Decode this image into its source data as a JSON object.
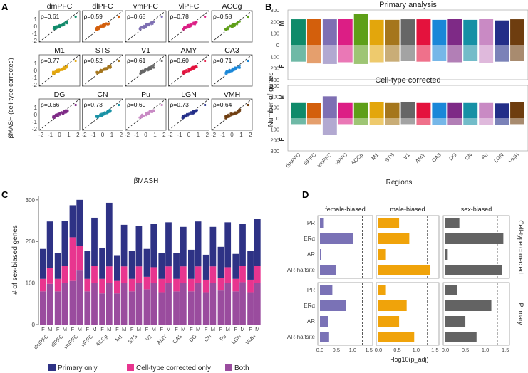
{
  "panel_labels": {
    "A": "A",
    "B": "B",
    "C": "C",
    "D": "D"
  },
  "panelA": {
    "ylabel": "β̂MASH (cell-type corrected)",
    "xlabel": "β̂MASH",
    "ticks": [
      "-2",
      "-1",
      "0",
      "1",
      "2"
    ],
    "facets": [
      {
        "region": "dmPFC",
        "rho": "ρ=0.61",
        "color": "#0f8a6a"
      },
      {
        "region": "dlPFC",
        "rho": "ρ=0.59",
        "color": "#d35f0c"
      },
      {
        "region": "vmPFC",
        "rho": "ρ=0.65",
        "color": "#7e6fb3"
      },
      {
        "region": "vlPFC",
        "rho": "ρ=0.78",
        "color": "#dc1e85"
      },
      {
        "region": "ACCg",
        "rho": "ρ=0.58",
        "color": "#5e9f18"
      },
      {
        "region": "M1",
        "rho": "ρ=0.77",
        "color": "#e3a60c"
      },
      {
        "region": "STS",
        "rho": "ρ=0.52",
        "color": "#a5761c"
      },
      {
        "region": "V1",
        "rho": "ρ=0.61",
        "color": "#666666"
      },
      {
        "region": "AMY",
        "rho": "ρ=0.60",
        "color": "#e4123d"
      },
      {
        "region": "CA3",
        "rho": "ρ=0.71",
        "color": "#1a87d8"
      },
      {
        "region": "DG",
        "rho": "ρ=0.66",
        "color": "#7e2a86"
      },
      {
        "region": "CN",
        "rho": "ρ=0.73",
        "color": "#1690a5"
      },
      {
        "region": "Pu",
        "rho": "ρ=0.60",
        "color": "#c98ac4"
      },
      {
        "region": "LGN",
        "rho": "ρ=0.73",
        "color": "#232e88"
      },
      {
        "region": "VMH",
        "rho": "ρ=0.64",
        "color": "#6e3d0f"
      }
    ]
  },
  "panelB": {
    "ylabel": "Number of genes",
    "xlabel": "Regions",
    "subtitle1": "Primary analysis",
    "subtitle2": "Cell-type corrected",
    "m_label": "M",
    "f_label": "F",
    "yticks": [
      "300",
      "200",
      "100",
      "0",
      "100",
      "200",
      "300"
    ],
    "chart_data": {
      "type": "bar",
      "categories": [
        "dmPFC",
        "dlPFC",
        "vmPFC",
        "vlPFC",
        "ACCg",
        "M1",
        "STS",
        "V1",
        "AMY",
        "CA3",
        "DG",
        "CN",
        "Pu",
        "LGN",
        "VMH"
      ],
      "colors": [
        "#0f8a6a",
        "#d35f0c",
        "#7e6fb3",
        "#dc1e85",
        "#5e9f18",
        "#e3a60c",
        "#a5761c",
        "#666666",
        "#e4123d",
        "#1a87d8",
        "#7e2a86",
        "#1690a5",
        "#c98ac4",
        "#232e88",
        "#6e3d0f"
      ],
      "primary": {
        "male": [
          220,
          225,
          220,
          225,
          265,
          215,
          215,
          220,
          220,
          215,
          225,
          215,
          225,
          210,
          220
        ],
        "female": [
          145,
          160,
          165,
          150,
          165,
          150,
          145,
          140,
          145,
          140,
          150,
          140,
          155,
          145,
          135
        ]
      },
      "celltype": {
        "male": [
          145,
          140,
          200,
          145,
          145,
          150,
          145,
          150,
          145,
          145,
          145,
          145,
          145,
          135,
          150
        ],
        "female": [
          55,
          55,
          150,
          55,
          60,
          60,
          60,
          55,
          60,
          60,
          60,
          65,
          60,
          65,
          55
        ]
      }
    }
  },
  "panelC": {
    "ylabel": "# of sex-biased genes",
    "yticks": [
      "0",
      "100",
      "200",
      "300"
    ],
    "legend": {
      "primary_only": "Primary only",
      "celltype_only": "Cell-type corrected only",
      "both": "Both"
    },
    "legend_colors": {
      "primary_only": "#2e3285",
      "celltype_only": "#e8358f",
      "both": "#9a4c9e"
    },
    "sex_labels": [
      "F",
      "M"
    ],
    "chart_data": {
      "type": "bar",
      "categories": [
        "dmPFC",
        "dlPFC",
        "vmPFC",
        "vlPFC",
        "ACCg",
        "M1",
        "STS",
        "V1",
        "AMY",
        "CA3",
        "DG",
        "CN",
        "Pu",
        "LGN",
        "VMH"
      ],
      "x_sub": [
        "F",
        "M"
      ],
      "both": [
        [
          80,
          98
        ],
        [
          80,
          100
        ],
        [
          105,
          130
        ],
        [
          80,
          100
        ],
        [
          75,
          100
        ],
        [
          75,
          100
        ],
        [
          80,
          100
        ],
        [
          85,
          100
        ],
        [
          78,
          100
        ],
        [
          80,
          100
        ],
        [
          80,
          100
        ],
        [
          78,
          100
        ],
        [
          82,
          100
        ],
        [
          80,
          102
        ],
        [
          78,
          100
        ]
      ],
      "celltype_only": [
        [
          30,
          38
        ],
        [
          30,
          42
        ],
        [
          105,
          60
        ],
        [
          30,
          42
        ],
        [
          35,
          40
        ],
        [
          30,
          40
        ],
        [
          30,
          40
        ],
        [
          30,
          38
        ],
        [
          32,
          40
        ],
        [
          30,
          40
        ],
        [
          30,
          40
        ],
        [
          30,
          40
        ],
        [
          30,
          38
        ],
        [
          30,
          40
        ],
        [
          30,
          42
        ]
      ],
      "primary_only": [
        [
          72,
          112
        ],
        [
          62,
          108
        ],
        [
          77,
          110
        ],
        [
          68,
          115
        ],
        [
          75,
          153
        ],
        [
          62,
          100
        ],
        [
          68,
          98
        ],
        [
          67,
          105
        ],
        [
          62,
          106
        ],
        [
          62,
          95
        ],
        [
          70,
          108
        ],
        [
          60,
          95
        ],
        [
          75,
          108
        ],
        [
          60,
          100
        ],
        [
          70,
          113
        ]
      ],
      "ylim": [
        0,
        310
      ]
    }
  },
  "panelD": {
    "facet_cols": [
      "female-biased",
      "male-biased",
      "sex-biased"
    ],
    "facet_rows": [
      "Cell-type corrected",
      "Primary"
    ],
    "motifs": [
      "PR",
      "ERα",
      "AR",
      "AR-halfsite"
    ],
    "xlabel": "-log10(p_adj)",
    "xticks": [
      "0.0",
      "0.5",
      "1.0",
      "1.5"
    ],
    "colors": [
      "#7a72b6",
      "#f0a30a",
      "#636363"
    ],
    "chart_data": {
      "type": "bar",
      "celltype": {
        "female": [
          0.12,
          1.02,
          0.03,
          0.48
        ],
        "male": [
          0.55,
          0.82,
          0.2,
          1.38
        ],
        "sex": [
          0.35,
          1.45,
          0.06,
          1.42
        ]
      },
      "primary": {
        "female": [
          0.38,
          0.8,
          0.25,
          0.28
        ],
        "male": [
          0.2,
          0.75,
          0.55,
          0.95
        ],
        "sex": [
          0.3,
          1.15,
          0.5,
          0.78
        ]
      },
      "threshold": 1.3,
      "xlim": [
        0,
        1.5
      ]
    }
  }
}
